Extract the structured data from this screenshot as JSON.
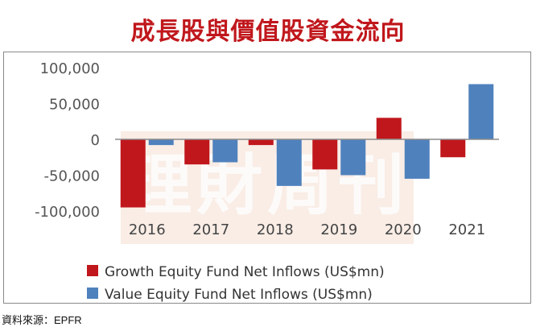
{
  "title": "成長股與價值股資金流向",
  "source": "資料來源：EPFR",
  "watermark": {
    "text": "理財周刊"
  },
  "chart_data": {
    "type": "bar",
    "categories": [
      "2016",
      "2017",
      "2018",
      "2019",
      "2020",
      "2021"
    ],
    "series": [
      {
        "name": "Growth Equity Fund Net Inflows (US$mn)",
        "color": "#c0171c",
        "values": [
          -95000,
          -35000,
          -8000,
          -42000,
          30000,
          -25000
        ]
      },
      {
        "name": "Value Equity Fund Net Inflows (US$mn)",
        "color": "#4f81bd",
        "values": [
          -8000,
          -32000,
          -65000,
          -50000,
          -55000,
          77000
        ]
      }
    ],
    "y_ticks": [
      {
        "value": 100000,
        "label": "100,000"
      },
      {
        "value": 50000,
        "label": "50,000"
      },
      {
        "value": 0,
        "label": "0"
      },
      {
        "value": -50000,
        "label": "-50,000"
      },
      {
        "value": -100000,
        "label": "-100,000"
      }
    ],
    "ylim": [
      -100000,
      100000
    ],
    "grid": false,
    "legend_position": "bottom"
  }
}
